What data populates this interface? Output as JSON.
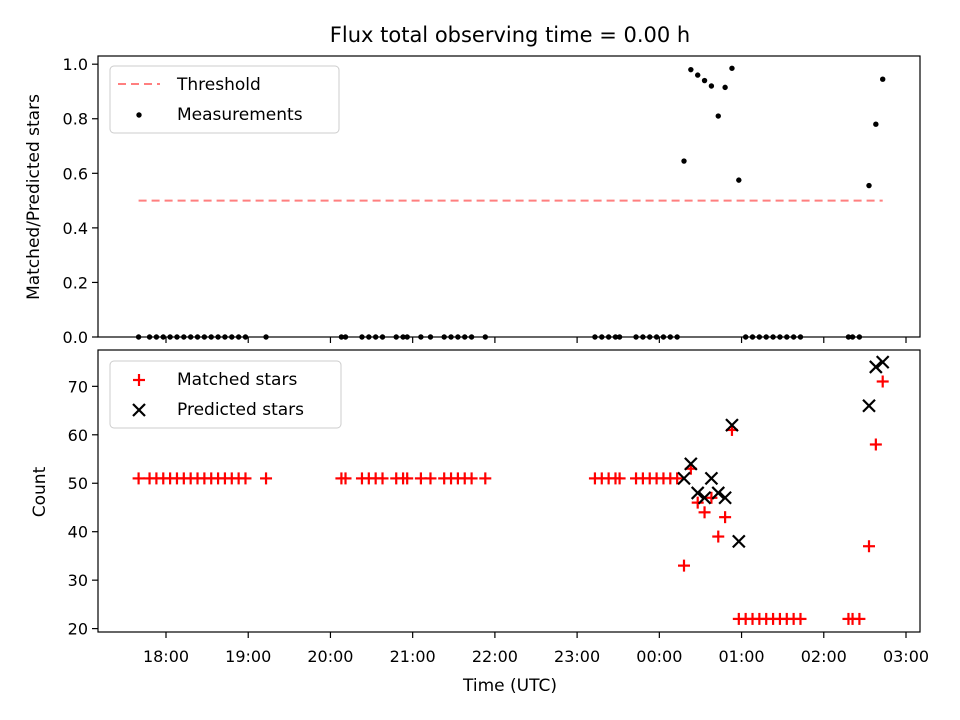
{
  "figure": {
    "title": "Flux total observing time = 0.00 h",
    "xlabel": "Time (UTC)",
    "x_tick_labels": [
      "18:00",
      "19:00",
      "20:00",
      "21:00",
      "22:00",
      "23:00",
      "00:00",
      "01:00",
      "02:00",
      "03:00"
    ]
  },
  "chart_data": [
    {
      "type": "scatter",
      "panel": "top",
      "ylabel": "Matched/Predicted stars",
      "ylim": [
        0,
        1.03
      ],
      "y_ticks": [
        0.0,
        0.2,
        0.4,
        0.6,
        0.8,
        1.0
      ],
      "y_tick_labels": [
        "0.0",
        "0.2",
        "0.4",
        "0.6",
        "0.8",
        "1.0"
      ],
      "legend": {
        "position": "upper-left",
        "entries": [
          "Threshold",
          "Measurements"
        ]
      },
      "threshold": {
        "name": "Threshold",
        "y": 0.5,
        "x_start": "17:40",
        "x_end": "02:43",
        "color": "#ff7f7f",
        "style": "dashed"
      },
      "series": [
        {
          "name": "Measurements",
          "color": "#000000",
          "marker": "dot",
          "points": [
            [
              "17:40",
              0
            ],
            [
              "17:48",
              0
            ],
            [
              "17:53",
              0
            ],
            [
              "17:58",
              0
            ],
            [
              "18:03",
              0
            ],
            [
              "18:08",
              0
            ],
            [
              "18:13",
              0
            ],
            [
              "18:18",
              0
            ],
            [
              "18:23",
              0
            ],
            [
              "18:28",
              0
            ],
            [
              "18:33",
              0
            ],
            [
              "18:38",
              0
            ],
            [
              "18:43",
              0
            ],
            [
              "18:48",
              0
            ],
            [
              "18:53",
              0
            ],
            [
              "18:58",
              0
            ],
            [
              "19:13",
              0
            ],
            [
              "20:08",
              0
            ],
            [
              "20:11",
              0
            ],
            [
              "20:23",
              0
            ],
            [
              "20:28",
              0
            ],
            [
              "20:33",
              0
            ],
            [
              "20:38",
              0
            ],
            [
              "20:48",
              0
            ],
            [
              "20:53",
              0
            ],
            [
              "20:56",
              0
            ],
            [
              "21:06",
              0
            ],
            [
              "21:13",
              0
            ],
            [
              "21:23",
              0
            ],
            [
              "21:28",
              0
            ],
            [
              "21:33",
              0
            ],
            [
              "21:38",
              0
            ],
            [
              "21:43",
              0
            ],
            [
              "21:53",
              0
            ],
            [
              "23:13",
              0
            ],
            [
              "23:18",
              0
            ],
            [
              "23:23",
              0
            ],
            [
              "23:28",
              0
            ],
            [
              "23:31",
              0
            ],
            [
              "23:43",
              0
            ],
            [
              "23:48",
              0
            ],
            [
              "23:53",
              0
            ],
            [
              "23:58",
              0
            ],
            [
              "00:03",
              0
            ],
            [
              "00:08",
              0
            ],
            [
              "00:13",
              0
            ],
            [
              "00:18",
              0.645
            ],
            [
              "00:23",
              0.98
            ],
            [
              "00:28",
              0.96
            ],
            [
              "00:33",
              0.94
            ],
            [
              "00:38",
              0.92
            ],
            [
              "00:43",
              0.81
            ],
            [
              "00:48",
              0.915
            ],
            [
              "00:53",
              0.985
            ],
            [
              "00:58",
              0.575
            ],
            [
              "01:03",
              0
            ],
            [
              "01:08",
              0
            ],
            [
              "01:13",
              0
            ],
            [
              "01:18",
              0
            ],
            [
              "01:23",
              0
            ],
            [
              "01:28",
              0
            ],
            [
              "01:33",
              0
            ],
            [
              "01:38",
              0
            ],
            [
              "01:43",
              0
            ],
            [
              "02:18",
              0
            ],
            [
              "02:21",
              0
            ],
            [
              "02:26",
              0
            ],
            [
              "02:33",
              0.555
            ],
            [
              "02:38",
              0.78
            ],
            [
              "02:43",
              0.945
            ]
          ]
        }
      ]
    },
    {
      "type": "scatter",
      "panel": "bottom",
      "ylabel": "Count",
      "ylim": [
        19.3,
        77.5
      ],
      "y_ticks": [
        20,
        30,
        40,
        50,
        60,
        70
      ],
      "y_tick_labels": [
        "20",
        "30",
        "40",
        "50",
        "60",
        "70"
      ],
      "legend": {
        "position": "upper-left",
        "entries": [
          "Matched stars",
          "Predicted stars"
        ]
      },
      "series": [
        {
          "name": "Matched stars",
          "color": "#ff0000",
          "marker": "plus",
          "points": [
            [
              "17:40",
              51
            ],
            [
              "17:48",
              51
            ],
            [
              "17:53",
              51
            ],
            [
              "17:58",
              51
            ],
            [
              "18:03",
              51
            ],
            [
              "18:08",
              51
            ],
            [
              "18:13",
              51
            ],
            [
              "18:18",
              51
            ],
            [
              "18:23",
              51
            ],
            [
              "18:28",
              51
            ],
            [
              "18:33",
              51
            ],
            [
              "18:38",
              51
            ],
            [
              "18:43",
              51
            ],
            [
              "18:48",
              51
            ],
            [
              "18:53",
              51
            ],
            [
              "18:58",
              51
            ],
            [
              "19:13",
              51
            ],
            [
              "20:08",
              51
            ],
            [
              "20:11",
              51
            ],
            [
              "20:23",
              51
            ],
            [
              "20:28",
              51
            ],
            [
              "20:33",
              51
            ],
            [
              "20:38",
              51
            ],
            [
              "20:48",
              51
            ],
            [
              "20:53",
              51
            ],
            [
              "20:56",
              51
            ],
            [
              "21:06",
              51
            ],
            [
              "21:13",
              51
            ],
            [
              "21:23",
              51
            ],
            [
              "21:28",
              51
            ],
            [
              "21:33",
              51
            ],
            [
              "21:38",
              51
            ],
            [
              "21:43",
              51
            ],
            [
              "21:53",
              51
            ],
            [
              "23:13",
              51
            ],
            [
              "23:18",
              51
            ],
            [
              "23:23",
              51
            ],
            [
              "23:28",
              51
            ],
            [
              "23:31",
              51
            ],
            [
              "23:43",
              51
            ],
            [
              "23:48",
              51
            ],
            [
              "23:53",
              51
            ],
            [
              "23:58",
              51
            ],
            [
              "00:03",
              51
            ],
            [
              "00:08",
              51
            ],
            [
              "00:13",
              51
            ],
            [
              "00:18",
              33
            ],
            [
              "00:23",
              53
            ],
            [
              "00:28",
              46
            ],
            [
              "00:33",
              44
            ],
            [
              "00:38",
              47
            ],
            [
              "00:43",
              39
            ],
            [
              "00:48",
              43
            ],
            [
              "00:53",
              61
            ],
            [
              "00:58",
              22
            ],
            [
              "01:03",
              22
            ],
            [
              "01:08",
              22
            ],
            [
              "01:13",
              22
            ],
            [
              "01:18",
              22
            ],
            [
              "01:23",
              22
            ],
            [
              "01:28",
              22
            ],
            [
              "01:33",
              22
            ],
            [
              "01:38",
              22
            ],
            [
              "01:43",
              22
            ],
            [
              "02:18",
              22
            ],
            [
              "02:21",
              22
            ],
            [
              "02:26",
              22
            ],
            [
              "02:33",
              37
            ],
            [
              "02:38",
              58
            ],
            [
              "02:43",
              71
            ]
          ]
        },
        {
          "name": "Predicted stars",
          "color": "#000000",
          "marker": "x",
          "points": [
            [
              "00:18",
              51
            ],
            [
              "00:23",
              54
            ],
            [
              "00:28",
              48
            ],
            [
              "00:33",
              47
            ],
            [
              "00:38",
              51
            ],
            [
              "00:43",
              48
            ],
            [
              "00:48",
              47
            ],
            [
              "00:53",
              62
            ],
            [
              "00:58",
              38
            ],
            [
              "02:33",
              66
            ],
            [
              "02:38",
              74
            ],
            [
              "02:43",
              75
            ]
          ]
        }
      ]
    }
  ]
}
